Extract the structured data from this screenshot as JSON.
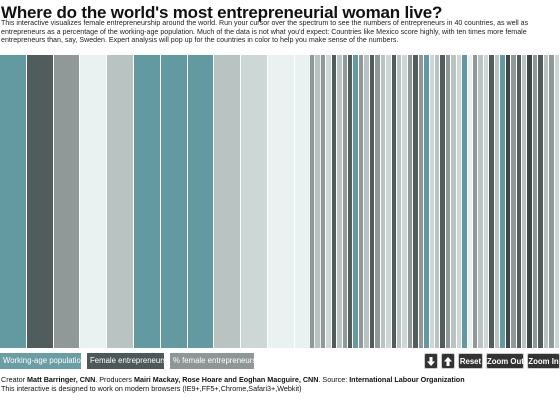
{
  "page": {
    "title": "Where do the world's most entrepreneurial woman live?",
    "intro": "This interactive visualizes female entrepreneurship around the world. Run your cursor over the spectrum to see the numbers of entrepreneurs in 40 countries, as well as entrepreneurs as a percentage of the working-age population. Much of the data is not what you'd expect: Countries like Mexico score highly, with ten times more female entrepreneurs than, say, Sweden. Expert analysis will pop up for the countries in color to help you make sense of the numbers."
  },
  "spectrum": {
    "colors": {
      "teal": "#6399a0",
      "slate": "#505d5c",
      "gray": "#909898",
      "mist": "#b9c4c2",
      "pale": "#e9f1f1",
      "light": "#cdd7d6",
      "dark": "#3d4747"
    },
    "bars": [
      "teal",
      "slate",
      "gray",
      "pale",
      "mist",
      "teal",
      "teal",
      "teal",
      "mist",
      "light",
      "pale",
      "pale",
      "gray",
      "mist",
      "gray",
      "light",
      "slate",
      "mist",
      "gray",
      "slate",
      "teal",
      "gray",
      "mist",
      "slate",
      "gray",
      "mist",
      "light",
      "slate",
      "mist",
      "light",
      "gray",
      "slate",
      "gray",
      "teal",
      "light",
      "mist",
      "slate",
      "gray",
      "mist",
      "light",
      "teal",
      "pale",
      "gray",
      "mist",
      "light",
      "slate",
      "mist",
      "teal",
      "dark",
      "gray",
      "slate",
      "mist",
      "dark",
      "gray",
      "slate",
      "mist",
      "gray",
      "light"
    ]
  },
  "mode_toggle": [
    {
      "label": "Working-age population",
      "color": "#6a9ea5"
    },
    {
      "label": "Female entrepreneurs",
      "color": "#4d5958"
    },
    {
      "label": "% female entrepreneurs",
      "color": "#8e9696"
    }
  ],
  "controls": {
    "down_icon": "arrow-down-icon",
    "up_icon": "arrow-up-icon",
    "reset": "Reset",
    "zoom_out": "Zoom Out",
    "zoom_in": "Zoom In"
  },
  "credits": {
    "creator_prefix": "Creator ",
    "creator": "Matt Barringer, CNN",
    "producers_prefix": ". Producers ",
    "producers": "Mairi Mackay, Rose Hoare and Eoghan Macguire, CNN",
    "source_prefix": ".  Source: ",
    "source": "International Labour Organization",
    "browsers": "This interactive is designed to work on modern browsers (IE9+,FF5+,Chrome,Safari3+,Webkit)"
  }
}
